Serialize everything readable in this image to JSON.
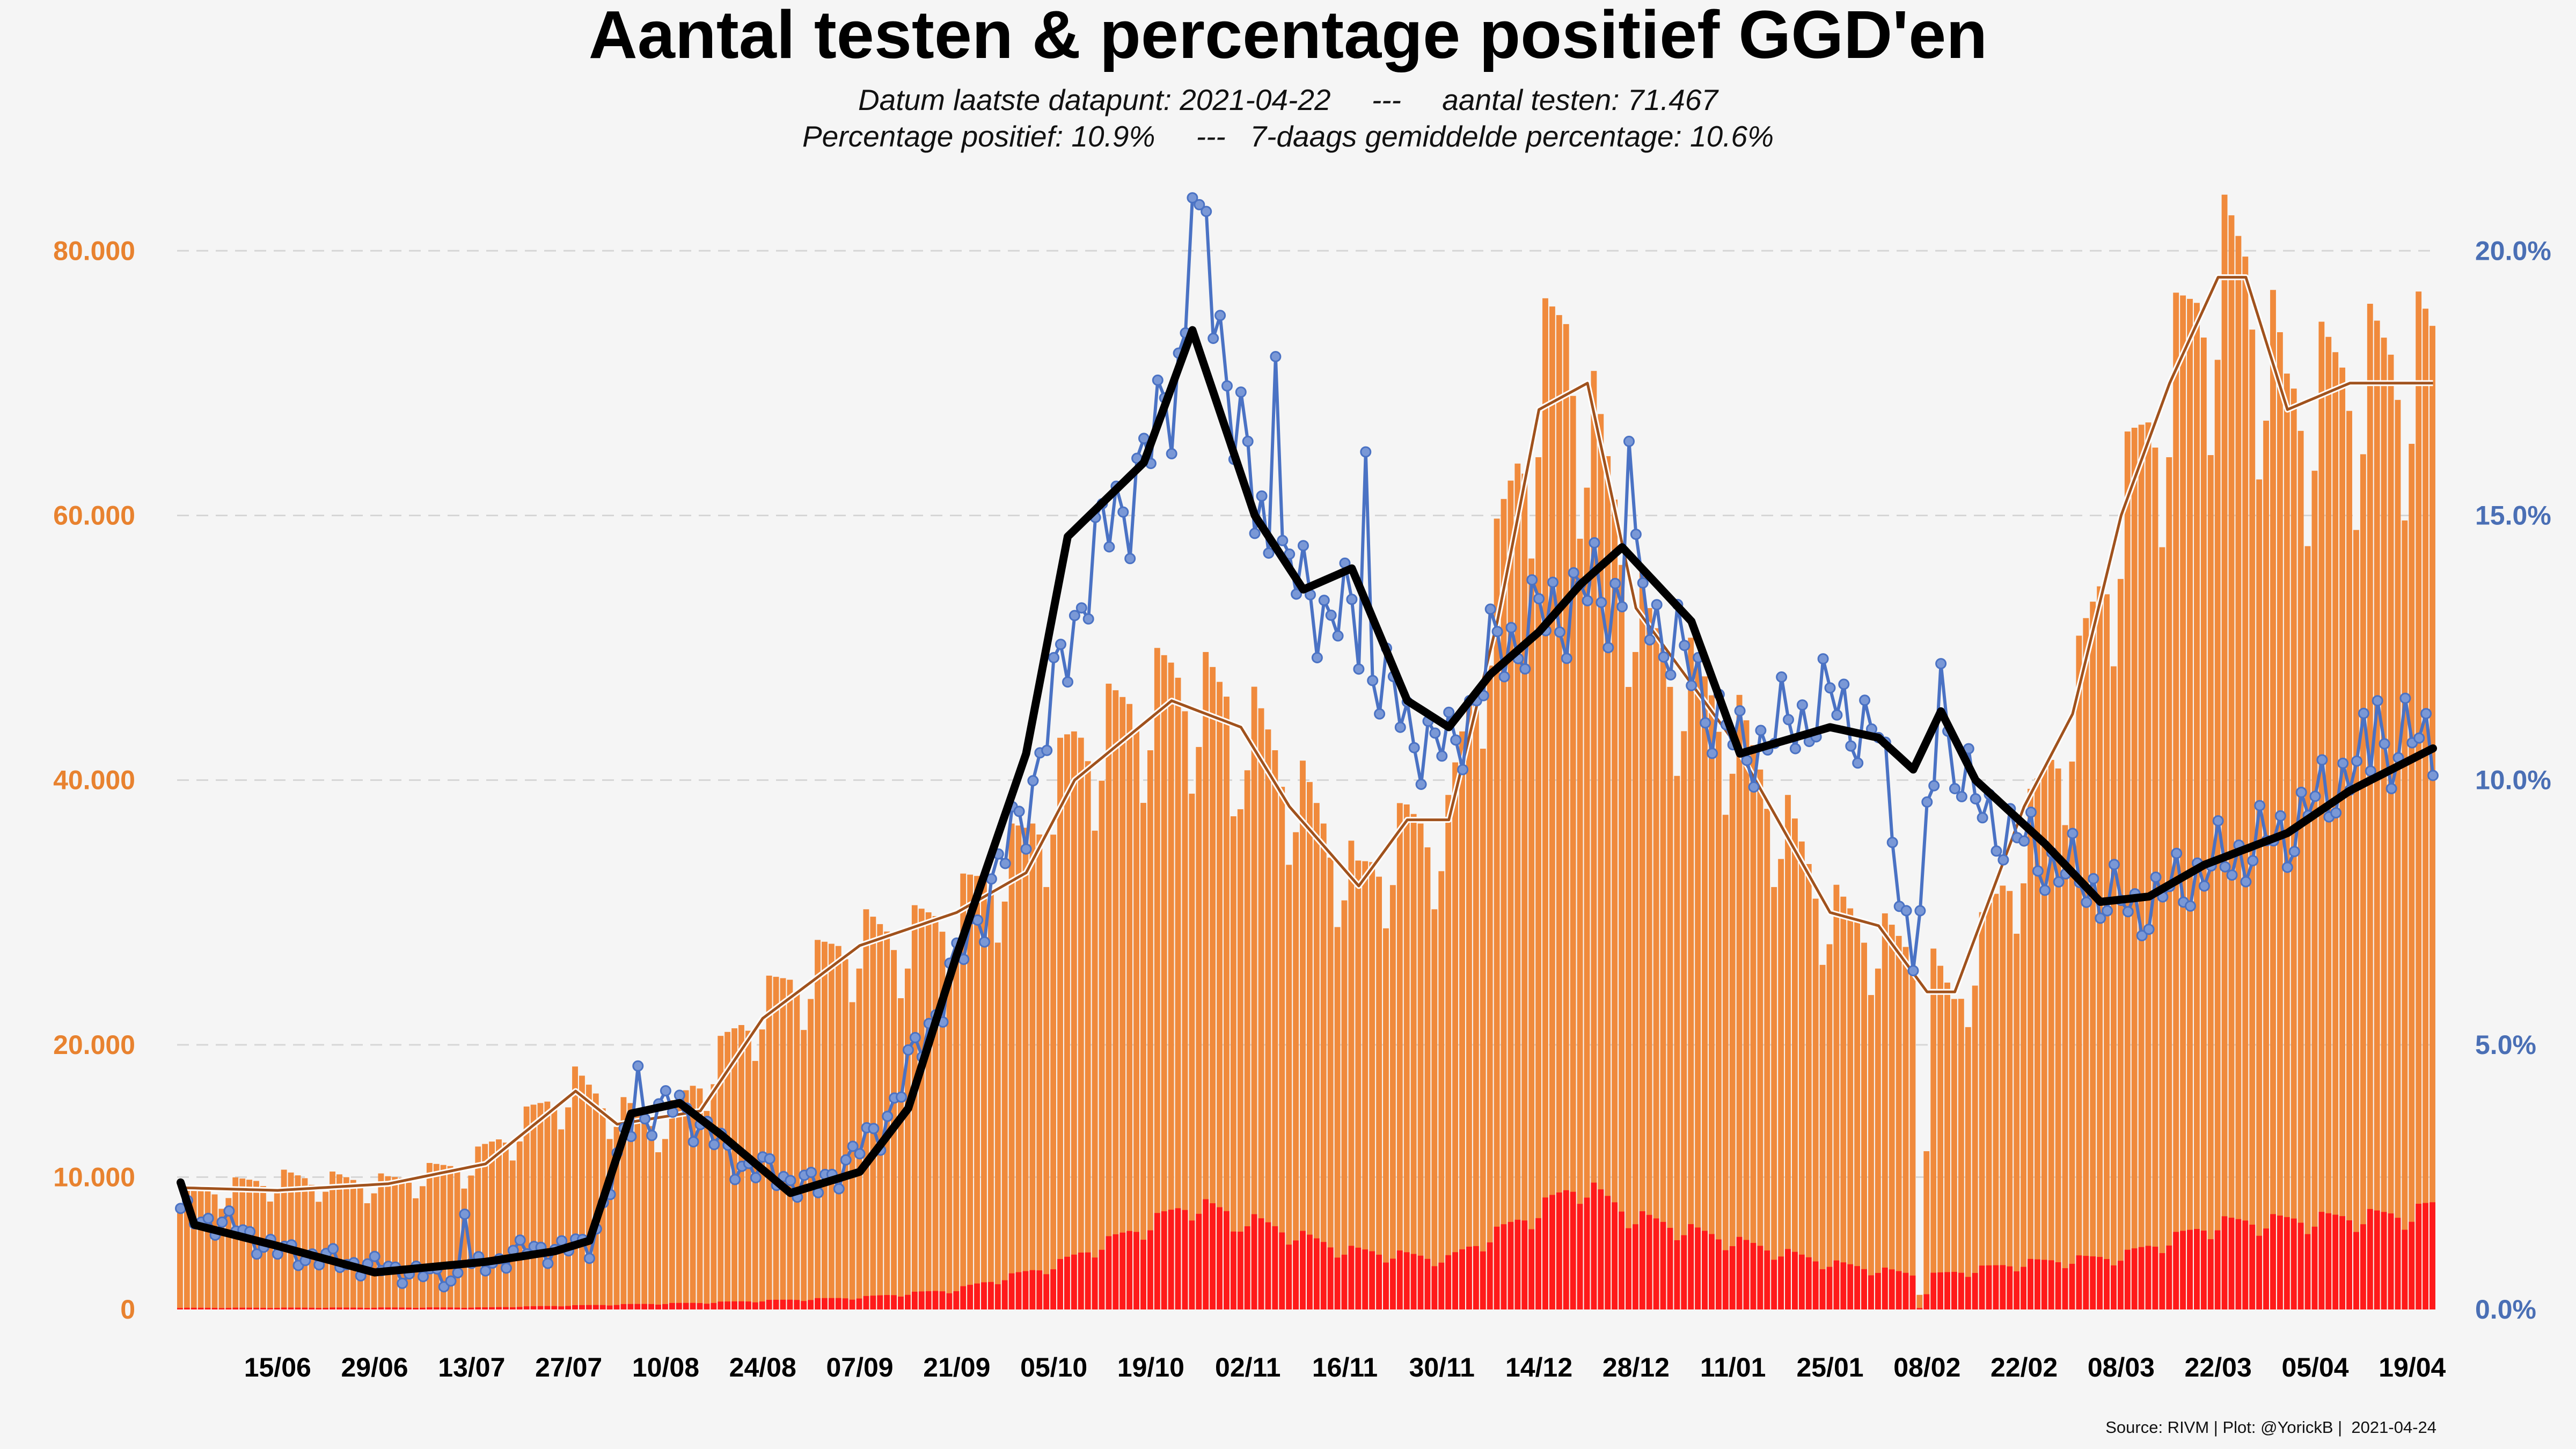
{
  "title": "Aantal testen & percentage positief GGD'en",
  "subtitle_line1": "Datum laatste datapunt: 2021-04-22     ---     aantal testen: 71.467",
  "subtitle_line2": "Percentage positief: 10.9%     ---   7-daags gemiddelde percentage: 10.6%",
  "source": "Source: RIVM | Plot: @YorickB |  2021-04-24",
  "colors": {
    "tests_bar": "#f08a3c",
    "positive_bar": "#ff1a1a",
    "tests_avg_line": "#a0521d",
    "pct_line": "#4a72c4",
    "pct_avg_line": "#000000",
    "left_axis": "#e8822f",
    "right_axis": "#4a6fb5"
  },
  "chart_data": {
    "type": "bar",
    "start_date": "2020-06-01",
    "end_date": "2021-04-22",
    "x_ticks": [
      "15/06",
      "29/06",
      "13/07",
      "27/07",
      "10/08",
      "24/08",
      "07/09",
      "21/09",
      "05/10",
      "19/10",
      "02/11",
      "16/11",
      "30/11",
      "14/12",
      "28/12",
      "11/01",
      "25/01",
      "08/02",
      "22/02",
      "08/03",
      "22/03",
      "05/04",
      "19/04"
    ],
    "y_left": {
      "ylim": [
        0,
        88000
      ],
      "ticks": [
        0,
        10000,
        20000,
        40000,
        60000,
        80000
      ],
      "tick_labels": [
        "0",
        "10.000",
        "20.000",
        "40.000",
        "60.000",
        "80.000"
      ]
    },
    "y_right": {
      "ylim": [
        0,
        22
      ],
      "ticks": [
        0,
        5,
        10,
        15,
        20
      ],
      "tick_labels": [
        "0.0%",
        "5.0%",
        "10.0%",
        "15.0%",
        "20.0%"
      ]
    },
    "grid": true,
    "legend": "none",
    "series": [
      {
        "axis": "left",
        "kind": "bar",
        "color_key": "tests_bar",
        "anchors": [
          [
            "2020-06-01",
            8500
          ],
          [
            "2020-06-15",
            9800
          ],
          [
            "2020-07-01",
            9500
          ],
          [
            "2020-07-13",
            11000
          ],
          [
            "2020-07-28",
            17000
          ],
          [
            "2020-08-03",
            15000
          ],
          [
            "2020-08-10",
            14000
          ],
          [
            "2020-08-24",
            23000
          ],
          [
            "2020-09-07",
            28000
          ],
          [
            "2020-09-14",
            28000
          ],
          [
            "2020-09-21",
            30000
          ],
          [
            "2020-10-01",
            35000
          ],
          [
            "2020-10-08",
            42000
          ],
          [
            "2020-10-22",
            47000
          ],
          [
            "2020-11-01",
            45000
          ],
          [
            "2020-11-08",
            40000
          ],
          [
            "2020-11-18",
            32000
          ],
          [
            "2020-11-25",
            36000
          ],
          [
            "2020-12-01",
            36000
          ],
          [
            "2020-12-05",
            48000
          ],
          [
            "2020-12-14",
            70000
          ],
          [
            "2020-12-18",
            73000
          ],
          [
            "2020-12-24",
            62000
          ],
          [
            "2020-12-30",
            50000
          ],
          [
            "2021-01-11",
            44000
          ],
          [
            "2021-01-25",
            30000
          ],
          [
            "2021-02-01",
            28000
          ],
          [
            "2021-02-08",
            26000
          ],
          [
            "2021-02-12",
            23000
          ],
          [
            "2021-02-22",
            35000
          ],
          [
            "2021-03-01",
            45000
          ],
          [
            "2021-03-08",
            60000
          ],
          [
            "2021-03-15",
            70000
          ],
          [
            "2021-03-22",
            78000
          ],
          [
            "2021-03-26",
            78000
          ],
          [
            "2021-04-01",
            68000
          ],
          [
            "2021-04-10",
            70000
          ],
          [
            "2021-04-22",
            71467
          ]
        ],
        "dips": [
          [
            "2020-10-31",
            0.85
          ],
          [
            "2021-02-07",
            0.05
          ],
          [
            "2021-02-08",
            0.5
          ]
        ]
      },
      {
        "axis": "left",
        "kind": "bar",
        "color_key": "positive_bar",
        "anchors": [
          [
            "2020-06-01",
            120
          ],
          [
            "2020-07-15",
            150
          ],
          [
            "2020-07-28",
            300
          ],
          [
            "2020-08-15",
            500
          ],
          [
            "2020-09-07",
            900
          ],
          [
            "2020-09-21",
            1500
          ],
          [
            "2020-10-05",
            3300
          ],
          [
            "2020-10-19",
            6500
          ],
          [
            "2020-10-25",
            8000
          ],
          [
            "2020-11-01",
            7000
          ],
          [
            "2020-11-16",
            4500
          ],
          [
            "2020-12-01",
            3800
          ],
          [
            "2020-12-14",
            7500
          ],
          [
            "2020-12-20",
            9500
          ],
          [
            "2020-12-28",
            7000
          ],
          [
            "2021-01-11",
            5200
          ],
          [
            "2021-01-25",
            3500
          ],
          [
            "2021-02-08",
            2500
          ],
          [
            "2021-02-22",
            3500
          ],
          [
            "2021-03-08",
            4000
          ],
          [
            "2021-03-22",
            6500
          ],
          [
            "2021-04-05",
            6800
          ],
          [
            "2021-04-19",
            7200
          ],
          [
            "2021-04-22",
            7790
          ]
        ]
      },
      {
        "axis": "left",
        "kind": "line",
        "color_key": "tests_avg_line",
        "name": "",
        "anchors": [
          [
            "2020-06-01",
            9200
          ],
          [
            "2020-06-15",
            9000
          ],
          [
            "2020-07-01",
            9500
          ],
          [
            "2020-07-15",
            11000
          ],
          [
            "2020-07-28",
            16500
          ],
          [
            "2020-08-03",
            14000
          ],
          [
            "2020-08-15",
            15000
          ],
          [
            "2020-08-24",
            22000
          ],
          [
            "2020-09-07",
            27500
          ],
          [
            "2020-09-21",
            30000
          ],
          [
            "2020-10-01",
            33000
          ],
          [
            "2020-10-08",
            40000
          ],
          [
            "2020-10-22",
            46000
          ],
          [
            "2020-11-01",
            44000
          ],
          [
            "2020-11-08",
            38000
          ],
          [
            "2020-11-18",
            32000
          ],
          [
            "2020-11-25",
            37000
          ],
          [
            "2020-12-01",
            37000
          ],
          [
            "2020-12-08",
            52000
          ],
          [
            "2020-12-14",
            68000
          ],
          [
            "2020-12-21",
            70000
          ],
          [
            "2020-12-28",
            53000
          ],
          [
            "2021-01-11",
            43000
          ],
          [
            "2021-01-25",
            30000
          ],
          [
            "2021-02-01",
            29000
          ],
          [
            "2021-02-08",
            24000
          ],
          [
            "2021-02-12",
            24000
          ],
          [
            "2021-02-22",
            38000
          ],
          [
            "2021-03-01",
            45000
          ],
          [
            "2021-03-08",
            60000
          ],
          [
            "2021-03-15",
            70000
          ],
          [
            "2021-03-22",
            78000
          ],
          [
            "2021-03-26",
            78000
          ],
          [
            "2021-04-01",
            68000
          ],
          [
            "2021-04-10",
            70000
          ],
          [
            "2021-04-22",
            70000
          ]
        ]
      },
      {
        "axis": "right",
        "kind": "line_markers",
        "color_key": "pct_line",
        "name": "",
        "anchors": [
          [
            "2020-06-01",
            1.8
          ],
          [
            "2020-06-08",
            1.6
          ],
          [
            "2020-06-15",
            1.1
          ],
          [
            "2020-06-29",
            0.8
          ],
          [
            "2020-07-10",
            0.6
          ],
          [
            "2020-07-20",
            1.1
          ],
          [
            "2020-07-30",
            1.2
          ],
          [
            "2020-08-05",
            3.5
          ],
          [
            "2020-08-12",
            3.9
          ],
          [
            "2020-08-20",
            2.8
          ],
          [
            "2020-09-01",
            2.3
          ],
          [
            "2020-09-10",
            3.4
          ],
          [
            "2020-09-21",
            6.5
          ],
          [
            "2020-10-01",
            9.5
          ],
          [
            "2020-10-10",
            14.0
          ],
          [
            "2020-10-20",
            16.5
          ],
          [
            "2020-10-27",
            20.0
          ],
          [
            "2020-11-03",
            15.0
          ],
          [
            "2020-11-10",
            13.5
          ],
          [
            "2020-11-17",
            13.0
          ],
          [
            "2020-11-25",
            11.0
          ],
          [
            "2020-12-01",
            10.5
          ],
          [
            "2020-12-08",
            12.5
          ],
          [
            "2020-12-20",
            13.5
          ],
          [
            "2020-12-29",
            13.5
          ],
          [
            "2021-01-05",
            12.0
          ],
          [
            "2021-01-12",
            10.5
          ],
          [
            "2021-01-25",
            11.5
          ],
          [
            "2021-02-01",
            10.8
          ],
          [
            "2021-02-06",
            6.5
          ],
          [
            "2021-02-10",
            11.0
          ],
          [
            "2021-02-15",
            9.5
          ],
          [
            "2021-02-25",
            8.5
          ],
          [
            "2021-03-10",
            7.5
          ],
          [
            "2021-03-20",
            8.3
          ],
          [
            "2021-04-01",
            9.0
          ],
          [
            "2021-04-10",
            10.2
          ],
          [
            "2021-04-22",
            10.9
          ]
        ],
        "spikes": [
          [
            "2020-07-12",
            1.8
          ],
          [
            "2020-08-06",
            4.6
          ],
          [
            "2020-10-25",
            21.0
          ],
          [
            "2020-11-06",
            18.0
          ],
          [
            "2020-11-19",
            16.2
          ],
          [
            "2020-12-27",
            16.4
          ],
          [
            "2021-02-06",
            6.4
          ],
          [
            "2021-02-10",
            12.2
          ],
          [
            "2021-04-14",
            11.5
          ]
        ]
      },
      {
        "axis": "right",
        "kind": "line",
        "color_key": "pct_avg_line",
        "name": "",
        "anchors": [
          [
            "2020-06-01",
            2.4
          ],
          [
            "2020-06-03",
            1.6
          ],
          [
            "2020-06-15",
            1.2
          ],
          [
            "2020-06-29",
            0.7
          ],
          [
            "2020-07-15",
            0.9
          ],
          [
            "2020-07-25",
            1.1
          ],
          [
            "2020-07-30",
            1.3
          ],
          [
            "2020-08-05",
            3.7
          ],
          [
            "2020-08-12",
            3.9
          ],
          [
            "2020-08-18",
            3.3
          ],
          [
            "2020-08-28",
            2.2
          ],
          [
            "2020-09-07",
            2.6
          ],
          [
            "2020-09-14",
            3.8
          ],
          [
            "2020-09-21",
            6.7
          ],
          [
            "2020-10-01",
            10.5
          ],
          [
            "2020-10-07",
            14.6
          ],
          [
            "2020-10-18",
            16.0
          ],
          [
            "2020-10-25",
            18.5
          ],
          [
            "2020-11-03",
            15.0
          ],
          [
            "2020-11-10",
            13.6
          ],
          [
            "2020-11-17",
            14.0
          ],
          [
            "2020-11-25",
            11.5
          ],
          [
            "2020-12-01",
            11.0
          ],
          [
            "2020-12-07",
            12.0
          ],
          [
            "2020-12-14",
            12.8
          ],
          [
            "2020-12-20",
            13.7
          ],
          [
            "2020-12-26",
            14.4
          ],
          [
            "2021-01-05",
            13.0
          ],
          [
            "2021-01-12",
            10.5
          ],
          [
            "2021-01-25",
            11.0
          ],
          [
            "2021-02-01",
            10.8
          ],
          [
            "2021-02-06",
            10.2
          ],
          [
            "2021-02-10",
            11.3
          ],
          [
            "2021-02-15",
            10.0
          ],
          [
            "2021-02-25",
            8.8
          ],
          [
            "2021-03-05",
            7.7
          ],
          [
            "2021-03-12",
            7.8
          ],
          [
            "2021-03-20",
            8.4
          ],
          [
            "2021-04-01",
            9.0
          ],
          [
            "2021-04-10",
            9.8
          ],
          [
            "2021-04-22",
            10.6
          ]
        ]
      }
    ]
  }
}
